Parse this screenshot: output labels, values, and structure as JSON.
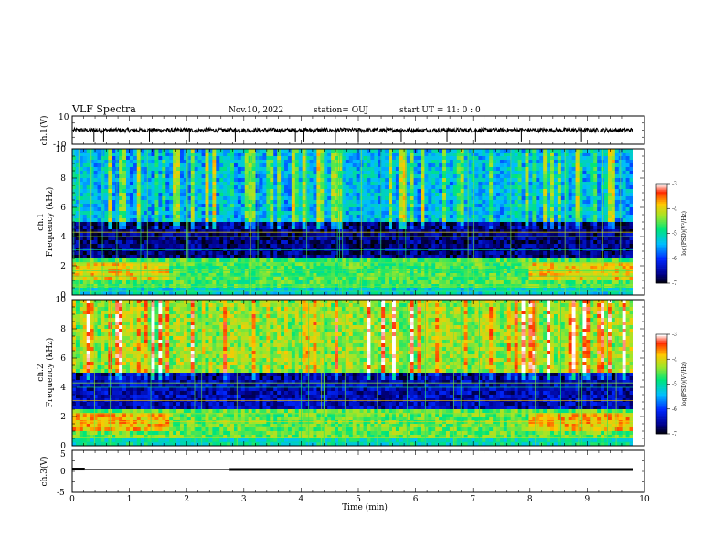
{
  "header": {
    "title": "VLF Spectra",
    "date": "Nov.10, 2022",
    "station": "station= OUJ",
    "start": "start  UT =   11: 0  : 0"
  },
  "chart_data": [
    {
      "type": "line",
      "name": "waveform-ch1",
      "ylabel": "ch.1(V)",
      "ylim": [
        -10,
        10
      ],
      "ytick_labels": [
        "10",
        "-10"
      ],
      "xlim": [
        0,
        10
      ],
      "data_extent_min": 9.8,
      "baseline": 0,
      "noise_amplitude": 1.5,
      "spikes_min": [
        0.38,
        0.55,
        1.35,
        2.05,
        2.85,
        3.9,
        4.05,
        4.6,
        5.0,
        5.75,
        6.55,
        7.05,
        7.85,
        8.9
      ]
    },
    {
      "type": "heatmap",
      "name": "spectrogram-ch1",
      "ylabel": "ch.1\nFrequency (kHz)",
      "xlim": [
        0,
        10
      ],
      "data_extent_min": 9.8,
      "ylim": [
        0,
        10
      ],
      "yticks": [
        0,
        2,
        4,
        6,
        8,
        10
      ],
      "colorbar": {
        "label": "log(PSD)(V²/Hz)",
        "range": [
          -7,
          -3
        ],
        "ticks": [
          -3,
          -4,
          -5,
          -6,
          -7
        ]
      },
      "description_levels": [
        {
          "freq_khz": [
            0,
            0.6
          ],
          "logpsd": -5.2
        },
        {
          "freq_khz": [
            0.6,
            2.6
          ],
          "logpsd": -4.6
        },
        {
          "freq_khz": [
            2.6,
            5.0
          ],
          "logpsd": -6.6
        },
        {
          "freq_khz": [
            5.0,
            10.0
          ],
          "logpsd": -5.3
        }
      ]
    },
    {
      "type": "heatmap",
      "name": "spectrogram-ch2",
      "ylabel": "ch.2\nFrequency (kHz)",
      "xlim": [
        0,
        10
      ],
      "data_extent_min": 9.8,
      "ylim": [
        0,
        10
      ],
      "yticks": [
        0,
        2,
        4,
        6,
        8,
        10
      ],
      "colorbar": {
        "label": "log(PSD)(V²/Hz)",
        "range": [
          -7,
          -3
        ],
        "ticks": [
          -3,
          -4,
          -5,
          -6,
          -7
        ]
      },
      "description_levels": [
        {
          "freq_khz": [
            0,
            0.6
          ],
          "logpsd": -5.0
        },
        {
          "freq_khz": [
            0.6,
            2.6
          ],
          "logpsd": -4.5
        },
        {
          "freq_khz": [
            2.6,
            5.0
          ],
          "logpsd": -6.4
        },
        {
          "freq_khz": [
            5.0,
            10.0
          ],
          "logpsd": -4.2
        }
      ]
    },
    {
      "type": "line",
      "name": "waveform-ch3",
      "ylabel": "ch.3(V)",
      "ylim": [
        -5,
        5
      ],
      "yticks": [
        5,
        0,
        -5
      ],
      "xlim": [
        0,
        10
      ],
      "data_extent_min": 9.8,
      "baseline": 0,
      "segments": [
        {
          "x": [
            0.0,
            0.22
          ],
          "y": 0.1,
          "width": "thick"
        },
        {
          "x": [
            0.22,
            2.75
          ],
          "y": 0,
          "width": "thin"
        },
        {
          "x": [
            2.75,
            9.8
          ],
          "y": 0,
          "width": "thick"
        }
      ],
      "xlabel": "Time (min)",
      "xticks": [
        0,
        1,
        2,
        3,
        4,
        5,
        6,
        7,
        8,
        9,
        10
      ]
    }
  ]
}
